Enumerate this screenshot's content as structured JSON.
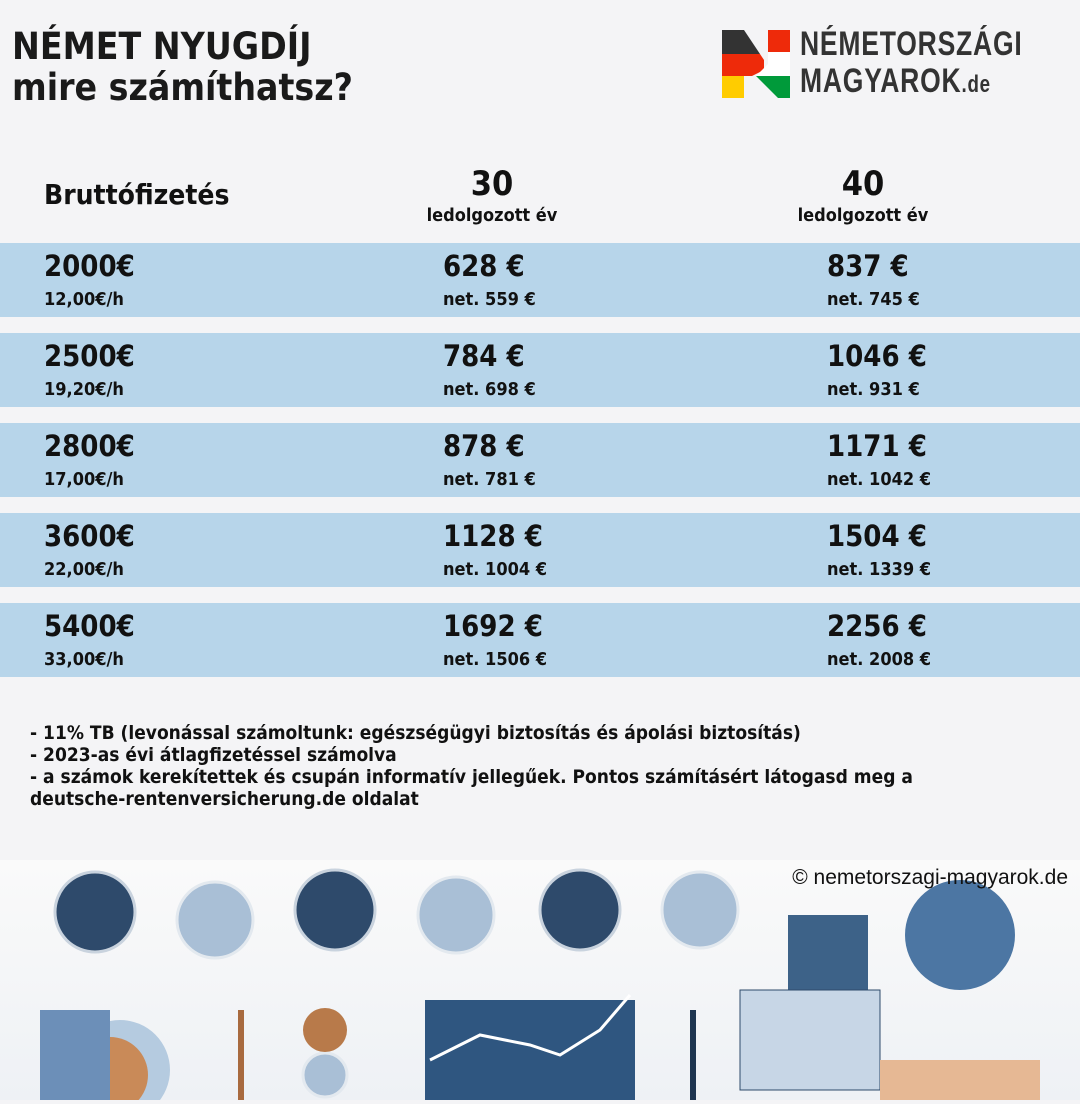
{
  "title": {
    "line1": "NÉMET NYUGDÍJ",
    "line2": "mire számíthatsz?"
  },
  "logo": {
    "line1": "NÉMETORSZÁGI",
    "line2": "MAGYAROK",
    "suffix": ".de",
    "colors": [
      "#333333",
      "#ee2a0a",
      "#ffcc00",
      "#ffffff",
      "#009a3a"
    ]
  },
  "table": {
    "headers": {
      "salary": "Bruttófizetés",
      "col30_num": "30",
      "col30_sub": "ledolgozott év",
      "col40_num": "40",
      "col40_sub": "ledolgozott év"
    },
    "row_color": "#b7d5ea",
    "rows": [
      {
        "gross": "2000€",
        "hourly": "12,00€/h",
        "p30": "628 €",
        "n30": "net. 559 €",
        "p40": "837 €",
        "n40": "net. 745 €"
      },
      {
        "gross": "2500€",
        "hourly": "19,20€/h",
        "p30": "784 €",
        "n30": "net. 698 €",
        "p40": "1046 €",
        "n40": "net. 931 €"
      },
      {
        "gross": "2800€",
        "hourly": "17,00€/h",
        "p30": "878 €",
        "n30": "net. 781 €",
        "p40": "1171 €",
        "n40": "net. 1042 €"
      },
      {
        "gross": "3600€",
        "hourly": "22,00€/h",
        "p30": "1128 €",
        "n30": "net. 1004 €",
        "p40": "1504 €",
        "n40": "net. 1339 €"
      },
      {
        "gross": "5400€",
        "hourly": "33,00€/h",
        "p30": "1692 €",
        "n30": "net. 1506 €",
        "p40": "2256 €",
        "n40": "net. 2008 €"
      }
    ]
  },
  "notes": [
    "- 11% TB (levonással számoltunk: egészségügyi biztosítás és ápolási biztosítás)",
    "- 2023-as évi átlagfizetéssel számolva",
    "- a számok kerekítettek és csupán informatív jellegűek. Pontos számításért látogasd meg a deutsche-rentenversicherung.de oldalat"
  ],
  "copyright": "© nemetorszagi-magyarok.de"
}
